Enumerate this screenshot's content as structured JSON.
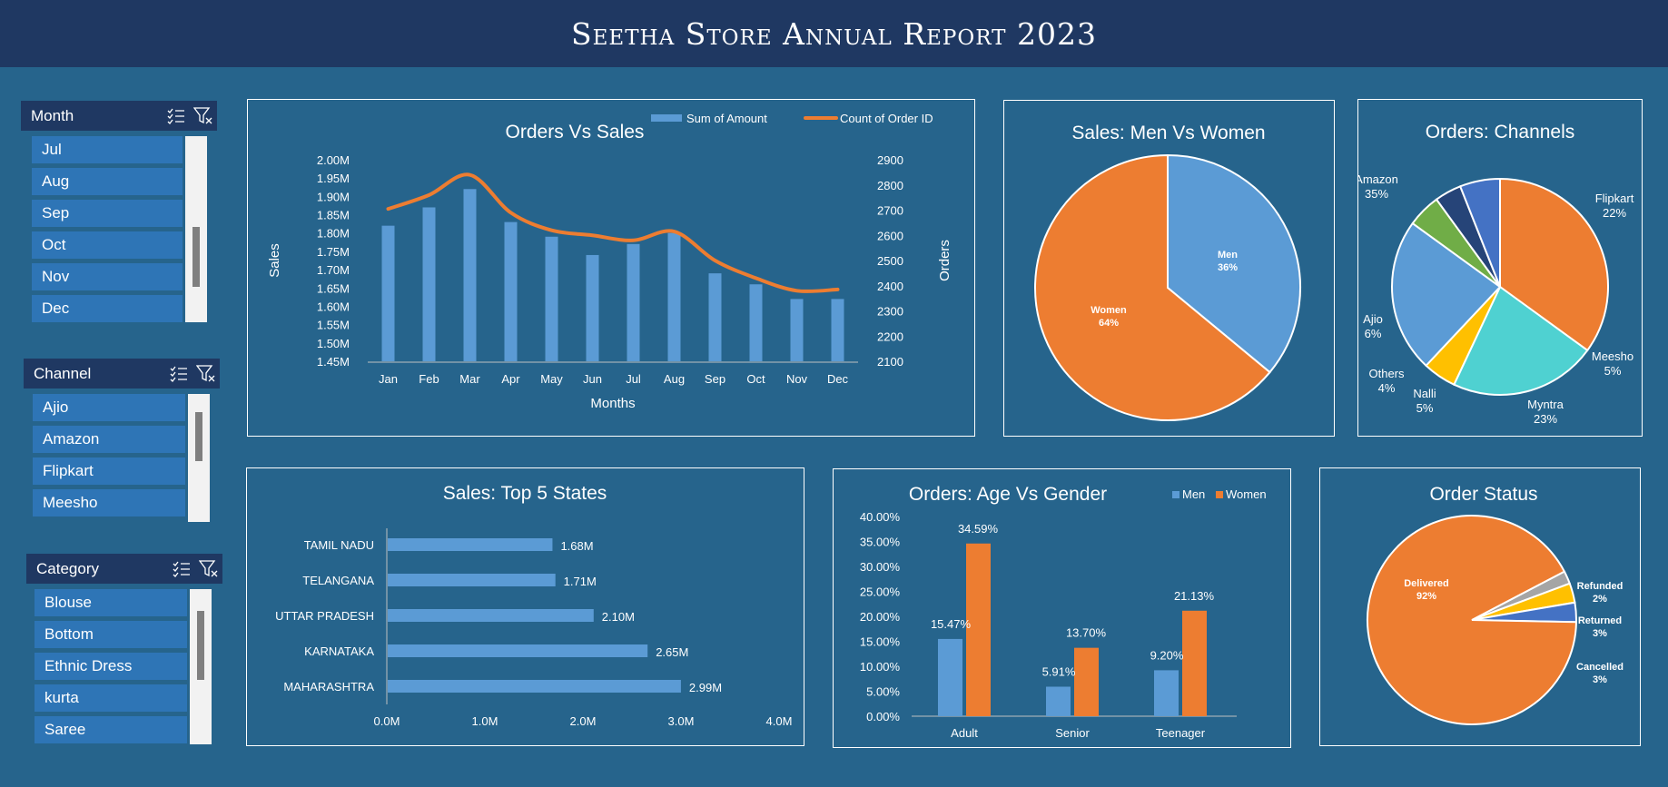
{
  "header": {
    "title": "Seetha Store Annual Report 2023"
  },
  "colors": {
    "background": "#26648c",
    "header": "#1f3862",
    "blue": "#5b9bd5",
    "orange": "#ed7d31"
  },
  "slicers": {
    "month": {
      "title": "Month",
      "items": [
        "Jul",
        "Aug",
        "Sep",
        "Oct",
        "Nov",
        "Dec"
      ]
    },
    "channel": {
      "title": "Channel",
      "items": [
        "Ajio",
        "Amazon",
        "Flipkart",
        "Meesho"
      ]
    },
    "category": {
      "title": "Category",
      "items": [
        "Blouse",
        "Bottom",
        "Ethnic Dress",
        "kurta",
        "Saree"
      ]
    }
  },
  "chart_data": [
    {
      "id": "orders_vs_sales",
      "type": "bar",
      "title": "Orders Vs Sales",
      "xlabel": "Months",
      "ylabel": "Sales",
      "y2label": "Orders",
      "categories": [
        "Jan",
        "Feb",
        "Mar",
        "Apr",
        "May",
        "Jun",
        "Jul",
        "Aug",
        "Sep",
        "Oct",
        "Nov",
        "Dec"
      ],
      "ylim": [
        1.45,
        2.0
      ],
      "y2lim": [
        2100,
        2900
      ],
      "yticks": [
        "2.00M",
        "1.95M",
        "1.90M",
        "1.85M",
        "1.80M",
        "1.75M",
        "1.70M",
        "1.65M",
        "1.60M",
        "1.55M",
        "1.50M",
        "1.45M"
      ],
      "y2ticks": [
        "2900",
        "2800",
        "2700",
        "2600",
        "2500",
        "2400",
        "2300",
        "2200",
        "2100"
      ],
      "series": [
        {
          "name": "Sum of Amount",
          "type": "bar",
          "values": [
            1.82,
            1.87,
            1.92,
            1.83,
            1.79,
            1.74,
            1.77,
            1.8,
            1.69,
            1.66,
            1.62,
            1.62
          ]
        },
        {
          "name": "Count of Order ID",
          "type": "line",
          "values": [
            2705,
            2760,
            2840,
            2690,
            2620,
            2600,
            2580,
            2615,
            2500,
            2430,
            2380,
            2385
          ]
        }
      ],
      "legend": "top"
    },
    {
      "id": "men_vs_women",
      "type": "pie",
      "title": "Sales: Men Vs Women",
      "labels": [
        "Men",
        "Women"
      ],
      "values": [
        36,
        64
      ],
      "display": [
        "36%",
        "64%"
      ]
    },
    {
      "id": "channels",
      "type": "pie",
      "title": "Orders: Channels",
      "labels": [
        "Amazon",
        "Flipkart",
        "Meesho",
        "Myntra",
        "Nalli",
        "Others",
        "Ajio"
      ],
      "values": [
        35,
        22,
        5,
        23,
        5,
        4,
        6
      ],
      "display": [
        "35%",
        "22%",
        "5%",
        "23%",
        "5%",
        "4%",
        "6%"
      ]
    },
    {
      "id": "top_states",
      "type": "bar",
      "orientation": "horizontal",
      "title": "Sales:  Top 5 States",
      "categories": [
        "TAMIL NADU",
        "TELANGANA",
        "UTTAR PRADESH",
        "KARNATAKA",
        "MAHARASHTRA"
      ],
      "values": [
        1.68,
        1.71,
        2.1,
        2.65,
        2.99
      ],
      "value_labels": [
        "1.68M",
        "1.71M",
        "2.10M",
        "2.65M",
        "2.99M"
      ],
      "xlim": [
        0,
        4
      ],
      "xticks": [
        "0.0M",
        "1.0M",
        "2.0M",
        "3.0M",
        "4.0M"
      ]
    },
    {
      "id": "age_vs_gender",
      "type": "bar",
      "title": "Orders: Age Vs Gender",
      "categories": [
        "Adult",
        "Senior",
        "Teenager"
      ],
      "ylim": [
        0,
        40
      ],
      "yticks": [
        "40.00%",
        "35.00%",
        "30.00%",
        "25.00%",
        "20.00%",
        "15.00%",
        "10.00%",
        "5.00%",
        "0.00%"
      ],
      "series": [
        {
          "name": "Men",
          "values": [
            15.47,
            5.91,
            9.2
          ],
          "labels": [
            "15.47%",
            "5.91%",
            "9.20%"
          ]
        },
        {
          "name": "Women",
          "values": [
            34.59,
            13.7,
            21.13
          ],
          "labels": [
            "34.59%",
            "13.70%",
            "21.13%"
          ]
        }
      ],
      "legend": "top-right"
    },
    {
      "id": "order_status",
      "type": "pie",
      "title": "Order Status",
      "labels": [
        "Delivered",
        "Refunded",
        "Returned",
        "Cancelled"
      ],
      "values": [
        92,
        2,
        3,
        3
      ],
      "display": [
        "92%",
        "2%",
        "3%",
        "3%"
      ]
    }
  ]
}
